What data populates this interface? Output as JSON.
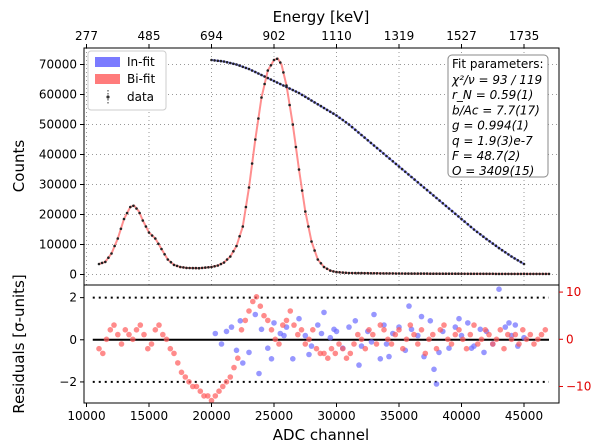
{
  "chart_data": [
    {
      "type": "scatter",
      "panel": "main",
      "xlabel": "",
      "ylabel": "Counts",
      "top_axis_label": "Energy [keV]",
      "top_ticks": [
        "277",
        "485",
        "694",
        "902",
        "1110",
        "1319",
        "1527",
        "1735"
      ],
      "top_tick_channels": [
        10000,
        15000,
        20000,
        25000,
        30000,
        35000,
        40000,
        45000
      ],
      "xlim": [
        9800,
        47800
      ],
      "ylim": [
        -3500,
        75500
      ],
      "yticks": [
        0,
        10000,
        20000,
        30000,
        40000,
        50000,
        60000,
        70000
      ],
      "ytick_labels": [
        "0",
        "10000",
        "20000",
        "30000",
        "40000",
        "50000",
        "60000",
        "70000"
      ],
      "grid": true,
      "legend_position": "top-left",
      "legend": [
        {
          "label": "In-fit",
          "color": "#7b7bff",
          "kind": "patch"
        },
        {
          "label": "Bi-fit",
          "color": "#ff7b7b",
          "kind": "patch"
        },
        {
          "label": "data",
          "color": "#333333",
          "kind": "errorbar"
        }
      ],
      "series": [
        {
          "name": "In-fit",
          "color": "#7b7bff",
          "x": [
            20000,
            21000,
            22000,
            23000,
            24000,
            25000,
            26000,
            27000,
            28000,
            29000,
            30000,
            31000,
            32000,
            33000,
            34000,
            35000,
            36000,
            37000,
            38000,
            39000,
            40000,
            41000,
            42000,
            43000,
            44000,
            45000
          ],
          "y": [
            71500,
            71000,
            70000,
            68500,
            66500,
            64500,
            62500,
            60500,
            58000,
            55500,
            53000,
            50000,
            46500,
            43000,
            39500,
            36000,
            32500,
            29000,
            25500,
            22000,
            18500,
            15000,
            11800,
            8800,
            6000,
            3500
          ]
        },
        {
          "name": "Bi-fit",
          "color": "#ff7b7b",
          "x": [
            11000,
            11500,
            12000,
            12500,
            13000,
            13500,
            13800,
            14200,
            14500,
            15000,
            15500,
            16000,
            16500,
            17000,
            17500,
            18000,
            19000,
            20000,
            20500,
            21000,
            21500,
            22000,
            22500,
            23000,
            23500,
            24000,
            24500,
            25000,
            25300,
            25600,
            26000,
            26500,
            27000,
            27500,
            28000,
            28500,
            29000,
            29500,
            30000,
            31000,
            33000,
            36000,
            40000,
            44000,
            47000
          ],
          "y": [
            3500,
            4200,
            7000,
            12000,
            18500,
            22500,
            23000,
            21000,
            18000,
            14000,
            12000,
            8500,
            5000,
            3200,
            2500,
            2200,
            2100,
            2500,
            3000,
            4000,
            6000,
            9500,
            16000,
            29000,
            45000,
            59000,
            68000,
            71500,
            72000,
            70000,
            63000,
            50000,
            35000,
            21000,
            11000,
            5000,
            2500,
            1300,
            800,
            500,
            400,
            300,
            250,
            200,
            200
          ]
        }
      ]
    },
    {
      "type": "scatter",
      "panel": "residuals",
      "xlabel": "ADC channel",
      "ylabel": "Residuals [σ-units]",
      "xlim": [
        9800,
        47800
      ],
      "xticks": [
        10000,
        15000,
        20000,
        25000,
        30000,
        35000,
        40000,
        45000
      ],
      "xtick_labels": [
        "10000",
        "15000",
        "20000",
        "25000",
        "30000",
        "35000",
        "40000",
        "45000"
      ],
      "ylim_left": [
        -3.0,
        2.6
      ],
      "yticks_left": [
        -2,
        0,
        2
      ],
      "ytick_labels_left": [
        "−2",
        "0",
        "2"
      ],
      "ylim_right": [
        -13.5,
        11.5
      ],
      "yticks_right": [
        -10,
        0,
        10
      ],
      "ytick_labels_right": [
        "−10",
        "0",
        "10"
      ],
      "right_axis_color": "#e00000",
      "reference_lines": [
        2,
        0,
        -2
      ],
      "series": [
        {
          "name": "In-fit",
          "color": "#6b6bff",
          "axis": "left",
          "x": [
            20300,
            20800,
            21200,
            21600,
            22000,
            22500,
            23000,
            23500,
            24000,
            24500,
            25000,
            25500,
            26000,
            26500,
            27000,
            27500,
            28000,
            28500,
            29000,
            29500,
            30000,
            30500,
            31000,
            31500,
            32000,
            32500,
            33000,
            33500,
            34000,
            34500,
            35000,
            35500,
            36000,
            36500,
            37000,
            37500,
            38000,
            38500,
            39000,
            39500,
            40000,
            40500,
            41000,
            41500,
            42000,
            42500,
            43000,
            43500,
            44000,
            44500,
            45000,
            22300,
            23800,
            25800,
            27800,
            29800,
            31800,
            33800,
            35800,
            37800,
            39800,
            41800,
            43800,
            24800,
            28800,
            32800,
            36800,
            40800,
            44300,
            34200,
            38200
          ],
          "y": [
            0.3,
            -0.2,
            0.4,
            0.6,
            -0.5,
            -1.1,
            -0.6,
            1.2,
            0.5,
            -0.4,
            0.8,
            0.3,
            0.6,
            -0.9,
            1.0,
            0.2,
            -0.3,
            0.7,
            1.3,
            0.1,
            0.4,
            -0.4,
            0.6,
            0.9,
            -0.3,
            0.4,
            1.2,
            -0.9,
            -0.2,
            0.3,
            0.6,
            -0.5,
            0.5,
            0.2,
            -0.8,
            0.9,
            -2.1,
            0.4,
            -0.4,
            0.6,
            0.2,
            0.8,
            -0.3,
            0.5,
            0.4,
            -0.2,
            2.4,
            0.6,
            0.2,
            -0.3,
            0.1,
            0.9,
            -1.6,
            0.2,
            -0.7,
            0.5,
            -1.2,
            0.7,
            1.6,
            -1.4,
            1.0,
            -0.6,
            0.8,
            -0.9,
            0.3,
            -0.1,
            1.1,
            -0.4,
            0.7,
            -0.8,
            -0.6
          ]
        },
        {
          "name": "Bi-fit",
          "color": "#ff5a5a",
          "axis": "right",
          "x": [
            11000,
            11300,
            11600,
            11900,
            12200,
            12500,
            12800,
            13100,
            13400,
            13700,
            14000,
            14300,
            14600,
            14900,
            15200,
            15500,
            15800,
            16100,
            16400,
            16700,
            17000,
            17300,
            17600,
            17900,
            18200,
            18500,
            18800,
            19100,
            19400,
            19700,
            20000,
            20300,
            20600,
            20900,
            21200,
            21500,
            21800,
            22100,
            22400,
            22700,
            23000,
            23300,
            23600,
            23900,
            24200,
            24500,
            24800,
            25100,
            25400,
            25700,
            26000,
            26300,
            26600,
            26900,
            27200,
            27500,
            27800,
            28100,
            28400,
            28700,
            29000,
            29300,
            29600,
            29900,
            30200,
            30500,
            30800,
            31100,
            31400,
            31700,
            32000,
            32300,
            32600,
            32900,
            33200,
            33500,
            33800,
            34100,
            34400,
            34700,
            35000,
            35300,
            35600,
            35900,
            36200,
            36500,
            36800,
            37100,
            37400,
            37700,
            38000,
            38300,
            38600,
            38900,
            39200,
            39500,
            39800,
            40100,
            40400,
            40700,
            41000,
            41300,
            41600,
            41900,
            42200,
            42500,
            42800,
            43100,
            43400,
            43700,
            44000,
            44300,
            44600,
            44900,
            45200,
            45500,
            45800,
            46100,
            46400,
            46700
          ],
          "y": [
            -2,
            -3,
            0,
            2,
            3,
            1,
            -1,
            2,
            1,
            0,
            2,
            3,
            1,
            -2,
            -1,
            2,
            3,
            1,
            0,
            -2,
            -3,
            -5,
            -7,
            -8,
            -9,
            -10,
            -10,
            -11,
            -12,
            -12,
            -13,
            -12,
            -11,
            -10,
            -9,
            -8,
            -6,
            -4,
            2,
            4,
            6,
            8,
            9,
            7,
            5,
            4,
            2,
            0,
            -1,
            3,
            4,
            6,
            3,
            1,
            2,
            -1,
            0,
            2,
            -2,
            -3,
            -3,
            -4,
            -2,
            -3,
            -1,
            -2,
            -4,
            -3,
            -1,
            1,
            0,
            -2,
            2,
            1,
            -1,
            3,
            2,
            0,
            -1,
            1,
            2,
            -2,
            0,
            3,
            1,
            -1,
            2,
            -3,
            0,
            1,
            -2,
            2,
            3,
            0,
            -1,
            1,
            2,
            0,
            -2,
            1,
            3,
            -1,
            0,
            2,
            1,
            -1,
            0,
            2,
            -2,
            1,
            0,
            1,
            -1,
            2,
            0,
            1,
            -1,
            0,
            1,
            2
          ]
        }
      ]
    }
  ],
  "fit_box": {
    "title": "Fit parameters:",
    "lines": [
      "χ²/ν = 93 / 119",
      "r_N = 0.59(1)",
      "b/Ac = 7.7(17)",
      "g = 0.994(1)",
      "q = 1.9(3)e-7",
      "F = 48.7(2)",
      "O = 3409(15)"
    ]
  }
}
